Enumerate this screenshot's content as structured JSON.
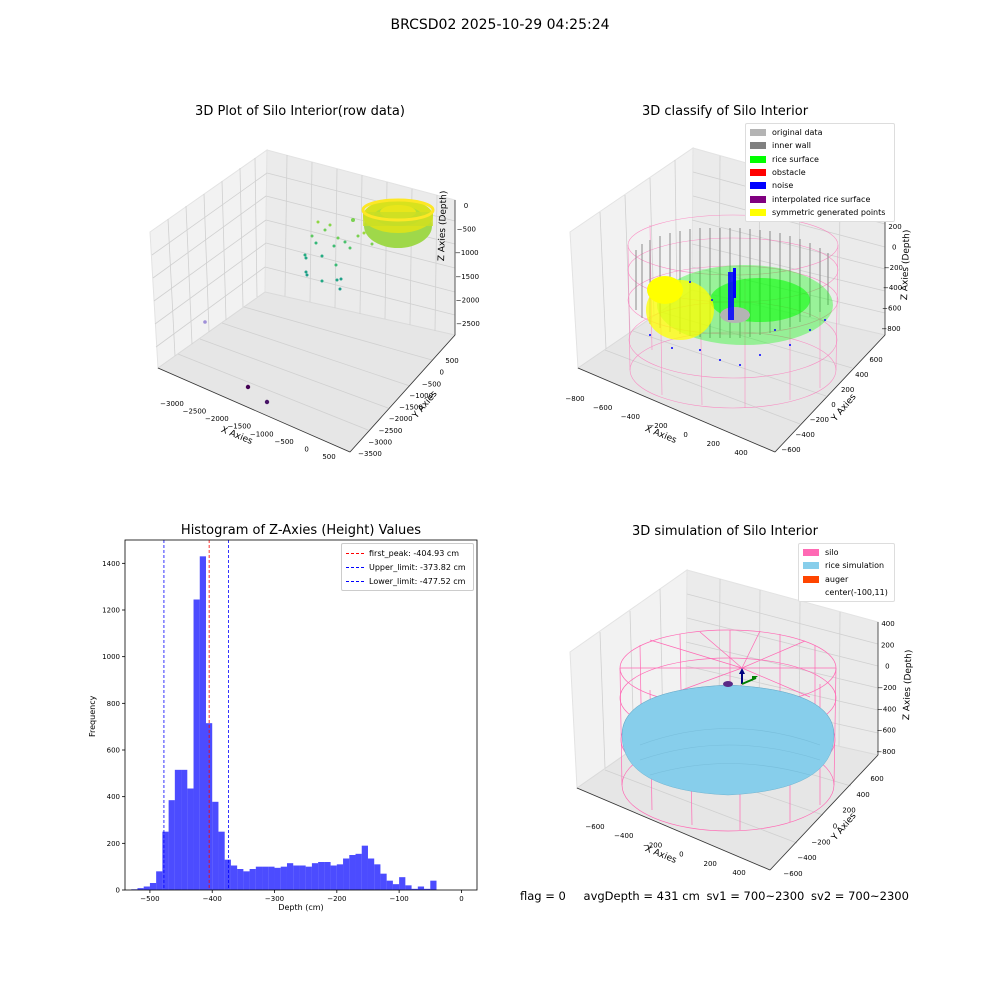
{
  "figure": {
    "suptitle": "BRCSD02 2025-10-29 04:25:24"
  },
  "panels": {
    "raw": {
      "title": "3D Plot of Silo Interior(row data)",
      "xlabel": "X Axies",
      "ylabel": "Y Axies",
      "zlabel": "Z Axies (Depth)",
      "x_ticks": [
        "−3000",
        "−2500",
        "−2000",
        "−1500",
        "−1000",
        "−500",
        "0",
        "500"
      ],
      "y_ticks": [
        "500",
        "0",
        "−500",
        "−1000",
        "−1500",
        "−2000",
        "−2500",
        "−3000",
        "−3500"
      ],
      "z_ticks": [
        "0",
        "−500",
        "−1000",
        "−1500",
        "−2000",
        "−2500"
      ]
    },
    "classify": {
      "title": "3D classify of Silo Interior",
      "xlabel": "X Axies",
      "ylabel": "Y Axies",
      "zlabel": "Z Axies (Depth)",
      "x_ticks": [
        "−800",
        "−600",
        "−400",
        "−200",
        "0",
        "200",
        "400"
      ],
      "y_ticks": [
        "600",
        "400",
        "200",
        "0",
        "−200",
        "−400",
        "−600"
      ],
      "z_ticks": [
        "200",
        "0",
        "−200",
        "−400",
        "−600",
        "−800"
      ],
      "legend": [
        {
          "label": "original data",
          "color": "#b4b4b4"
        },
        {
          "label": "inner wall",
          "color": "#808080"
        },
        {
          "label": "rice surface",
          "color": "#00ff00"
        },
        {
          "label": "obstacle",
          "color": "#ff0000"
        },
        {
          "label": "noise",
          "color": "#0000ff"
        },
        {
          "label": "interpolated rice surface",
          "color": "#800080"
        },
        {
          "label": "symmetric generated points",
          "color": "#ffff00"
        }
      ]
    },
    "simulation": {
      "title": "3D simulation of Silo Interior",
      "xlabel": "X Axies",
      "ylabel": "Y Axies",
      "zlabel": "Z Axies (Depth)",
      "x_ticks": [
        "−600",
        "−400",
        "−200",
        "0",
        "200",
        "400"
      ],
      "y_ticks": [
        "600",
        "400",
        "200",
        "0",
        "−200",
        "−400",
        "−600"
      ],
      "z_ticks": [
        "400",
        "200",
        "0",
        "−200",
        "−400",
        "−600",
        "−800"
      ],
      "legend": [
        {
          "label": "silo",
          "color": "#ff69b4"
        },
        {
          "label": "rice simulation",
          "color": "#87ceeb"
        },
        {
          "label": "auger",
          "color": "#ff4500"
        },
        {
          "label": "center(-100,11)",
          "color": ""
        }
      ]
    },
    "status": {
      "flag": "flag = 0",
      "avg": "avgDepth = 431 cm",
      "sv1": "sv1 = 700~2300",
      "sv2": "sv2 = 700~2300"
    }
  },
  "chart_data": [
    {
      "type": "bar",
      "title": "Histogram of Z-Axies (Height) Values",
      "xlabel": "Depth (cm)",
      "ylabel": "Frequency",
      "bin_start": -530,
      "bin_width": 10,
      "values": [
        3,
        8,
        15,
        30,
        80,
        250,
        385,
        515,
        515,
        435,
        1245,
        1430,
        715,
        378,
        250,
        130,
        105,
        90,
        80,
        90,
        100,
        100,
        100,
        95,
        100,
        115,
        105,
        105,
        100,
        115,
        120,
        120,
        105,
        110,
        135,
        150,
        155,
        190,
        135,
        110,
        70,
        40,
        25,
        55,
        20,
        5,
        15,
        5,
        40
      ],
      "xlim": [
        -540,
        25
      ],
      "ylim": [
        0,
        1500
      ],
      "x_ticks": [
        -500,
        -400,
        -300,
        -200,
        -100,
        0
      ],
      "y_ticks": [
        0,
        200,
        400,
        600,
        800,
        1000,
        1200,
        1400
      ],
      "bar_color": "#0000ff",
      "vlines": [
        {
          "x": -404.93,
          "color": "#ff0000",
          "label": "first_peak: -404.93 cm"
        },
        {
          "x": -373.82,
          "color": "#0000ff",
          "label": "Upper_limit: -373.82 cm"
        },
        {
          "x": -477.52,
          "color": "#0000ff",
          "label": "Lower_limit: -477.52 cm"
        }
      ],
      "legend_position": "upper-right"
    }
  ]
}
